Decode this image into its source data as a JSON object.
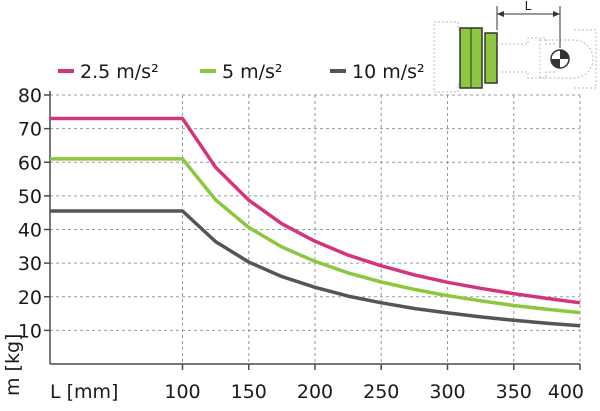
{
  "chart_data": {
    "type": "line",
    "xlabel": "L [mm]",
    "ylabel": "m [kg]",
    "xlim": [
      0,
      400
    ],
    "ylim": [
      0,
      80
    ],
    "xticks": [
      100,
      150,
      200,
      250,
      300,
      350,
      400
    ],
    "yticks": [
      10,
      20,
      30,
      40,
      50,
      60,
      70,
      80
    ],
    "grid": true,
    "legend_position": "top-left",
    "series": [
      {
        "name": "2.5 m/s²",
        "color": "#d6337f",
        "x": [
          0,
          100,
          125,
          150,
          175,
          200,
          225,
          250,
          275,
          300,
          325,
          350,
          375,
          400
        ],
        "y": [
          73,
          73,
          58.5,
          48.7,
          41.7,
          36.5,
          32.4,
          29.2,
          26.5,
          24.3,
          22.5,
          20.9,
          19.5,
          18.2
        ]
      },
      {
        "name": "5 m/s²",
        "color": "#8dc63f",
        "x": [
          0,
          100,
          125,
          150,
          175,
          200,
          225,
          250,
          275,
          300,
          325,
          350,
          375,
          400
        ],
        "y": [
          61,
          61,
          48.8,
          40.6,
          34.8,
          30.5,
          27.1,
          24.4,
          22.2,
          20.3,
          18.8,
          17.4,
          16.3,
          15.3
        ]
      },
      {
        "name": "10 m/s²",
        "color": "#555555",
        "x": [
          0,
          100,
          125,
          150,
          175,
          200,
          225,
          250,
          275,
          300,
          325,
          350,
          375,
          400
        ],
        "y": [
          45.5,
          45.5,
          36.4,
          30.3,
          26.0,
          22.8,
          20.2,
          18.2,
          16.5,
          15.2,
          14.0,
          13.0,
          12.1,
          11.4
        ]
      }
    ],
    "inset": {
      "dimension_label": "L"
    }
  }
}
